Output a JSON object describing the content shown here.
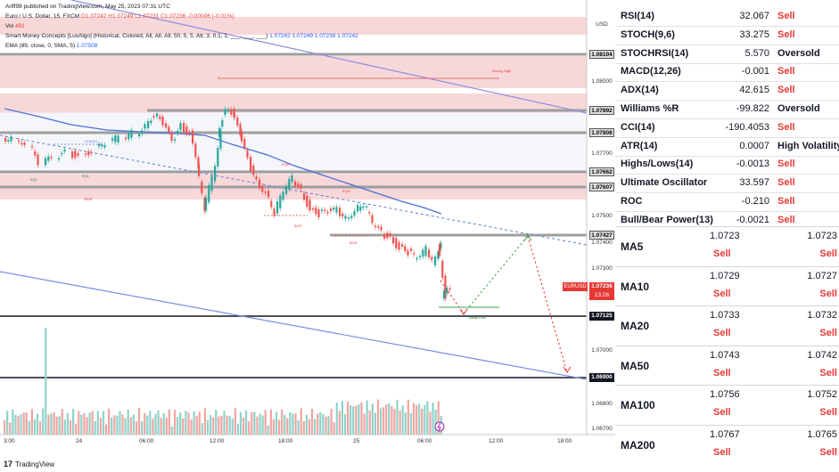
{
  "header": {
    "publisher": "Ariff99 published on TradingView.com, May 25, 2023 07:31 UTC",
    "symbol_line": "Euro / U.S. Dollar, 15, FXCM",
    "ohlc": "O1.07242 H1.07249 L1.07231 C1.07236 -0.00006 (-0.01%)",
    "vol_label": "Vol",
    "vol_value": "491",
    "smc_label": "Smart Money Concepts [LuxAlgo] (Historical, Colored, All, All, All, 50, 5, 5, Atr, 3, 0.1, 1, ___, ___, ___)",
    "smc_values": "1.07242 1.07249 1.07238 1.07242",
    "ema_label": "EMA (89, close, 0, SMA, 5)",
    "ema_value": "1.07508"
  },
  "price_axis": {
    "currency": "USD",
    "ticks": [
      "1.08000",
      "1.07700",
      "1.07500",
      "1.07400",
      "1.07300",
      "1.07000",
      "1.06800",
      "1.06700"
    ],
    "levels": [
      "1.08104",
      "1.07892",
      "1.07808",
      "1.07662",
      "1.07607",
      "1.07427"
    ],
    "black_levels": [
      "1.07125",
      "1.06900"
    ],
    "current_symbol": "EURUSD",
    "current_price": "1.07236",
    "countdown": "13:26"
  },
  "time_axis": [
    "3:00",
    "24",
    "06:00",
    "12:00",
    "18:00",
    "25",
    "06:00",
    "12:00",
    "18:00"
  ],
  "chart_labels": {
    "strong_high": "Strong High",
    "eqh_1": "EQH",
    "eqh_2": "EQH",
    "bos_1": "BOS",
    "bos_2": "BOS",
    "bos_3": "BOS",
    "choch": "CHoCH",
    "eql_1": "EQL",
    "eql_2": "EQL",
    "weak_low": "Weak Low"
  },
  "logo": "TradingView",
  "oscillators": [
    {
      "name": "RSI(14)",
      "value": "32.067",
      "action": "Sell"
    },
    {
      "name": "STOCH(9,6)",
      "value": "33.275",
      "action": "Sell"
    },
    {
      "name": "STOCHRSI(14)",
      "value": "5.570",
      "action": "Oversold"
    },
    {
      "name": "MACD(12,26)",
      "value": "-0.001",
      "action": "Sell"
    },
    {
      "name": "ADX(14)",
      "value": "42.615",
      "action": "Sell"
    },
    {
      "name": "Williams %R",
      "value": "-99.822",
      "action": "Oversold"
    },
    {
      "name": "CCI(14)",
      "value": "-190.4053",
      "action": "Sell"
    },
    {
      "name": "ATR(14)",
      "value": "0.0007",
      "action": "High Volatility"
    },
    {
      "name": "Highs/Lows(14)",
      "value": "-0.0013",
      "action": "Sell"
    },
    {
      "name": "Ultimate Oscillator",
      "value": "33.597",
      "action": "Sell"
    },
    {
      "name": "ROC",
      "value": "-0.210",
      "action": "Sell"
    },
    {
      "name": "Bull/Bear Power(13)",
      "value": "-0.0021",
      "action": "Sell"
    }
  ],
  "moving_averages": [
    {
      "name": "MA5",
      "v1": "1.0723",
      "s1": "Sell",
      "v2": "1.0723",
      "s2": "Sell"
    },
    {
      "name": "MA10",
      "v1": "1.0729",
      "s1": "Sell",
      "v2": "1.0727",
      "s2": "Sell"
    },
    {
      "name": "MA20",
      "v1": "1.0733",
      "s1": "Sell",
      "v2": "1.0732",
      "s2": "Sell"
    },
    {
      "name": "MA50",
      "v1": "1.0743",
      "s1": "Sell",
      "v2": "1.0742",
      "s2": "Sell"
    },
    {
      "name": "MA100",
      "v1": "1.0756",
      "s1": "Sell",
      "v2": "1.0752",
      "s2": "Sell"
    },
    {
      "name": "MA200",
      "v1": "1.0767",
      "s1": "Sell",
      "v2": "1.0765",
      "s2": "Sell"
    }
  ]
}
